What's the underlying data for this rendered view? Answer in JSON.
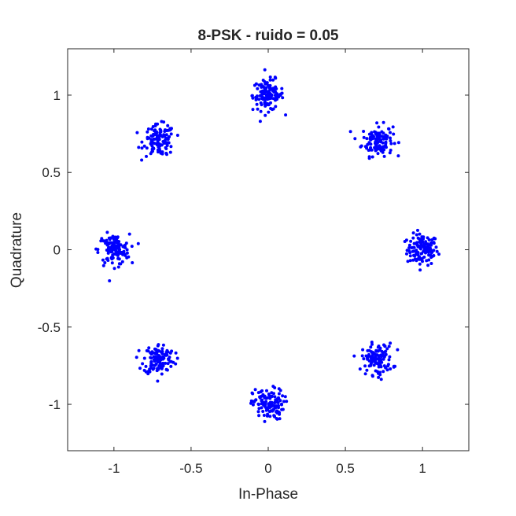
{
  "chart_data": {
    "type": "scatter",
    "title": "8-PSK - ruido = 0.05",
    "xlabel": "In-Phase",
    "ylabel": "Quadrature",
    "xlim": [
      -1.3,
      1.3
    ],
    "ylim": [
      -1.3,
      1.3
    ],
    "xticks": [
      -1,
      -0.5,
      0,
      0.5,
      1
    ],
    "yticks": [
      -1,
      -0.5,
      0,
      0.5,
      1
    ],
    "xtick_labels": [
      "-1",
      "-0.5",
      "0",
      "0.5",
      "1"
    ],
    "ytick_labels": [
      "-1",
      "-0.5",
      "0",
      "0.5",
      "1"
    ],
    "grid": false,
    "legend": "none",
    "marker_color": "#0000ff",
    "noise_sigma": 0.05,
    "constellation": [
      {
        "x": 1,
        "y": 0
      },
      {
        "x": 0.7071,
        "y": 0.7071
      },
      {
        "x": 0,
        "y": 1
      },
      {
        "x": -0.7071,
        "y": 0.7071
      },
      {
        "x": -1,
        "y": 0
      },
      {
        "x": -0.7071,
        "y": -0.7071
      },
      {
        "x": 0,
        "y": -1
      },
      {
        "x": 0.7071,
        "y": -0.7071
      }
    ],
    "points_per_symbol": 125
  }
}
